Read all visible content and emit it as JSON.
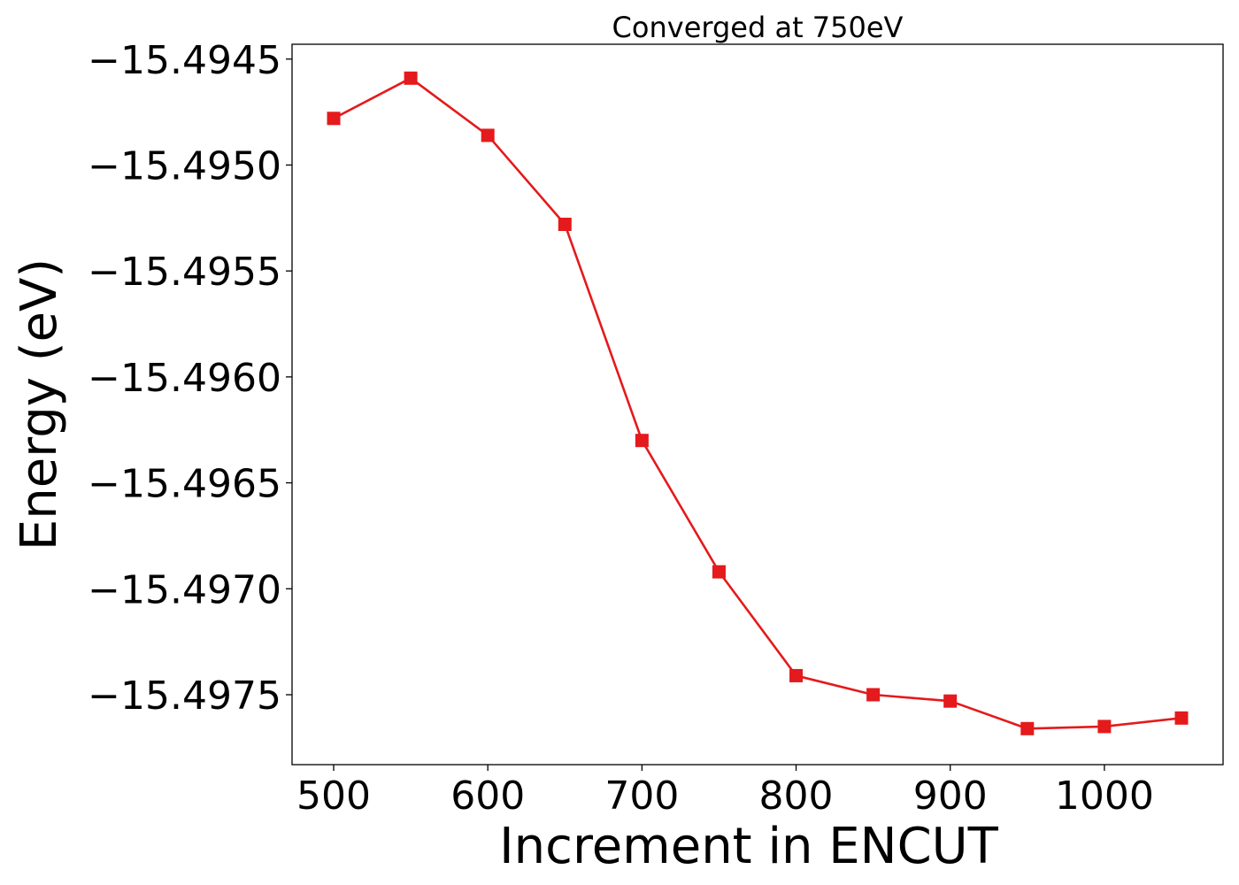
{
  "chart_data": {
    "type": "line",
    "title": "Converged at 750eV",
    "xlabel": "Increment in ENCUT",
    "ylabel": "Energy (eV)",
    "x": [
      500,
      550,
      600,
      650,
      700,
      750,
      800,
      850,
      900,
      950,
      1000,
      1050
    ],
    "series": [
      {
        "values": [
          -15.49478,
          -15.49459,
          -15.49486,
          -15.49528,
          -15.4963,
          -15.49692,
          -15.49741,
          -15.4975,
          -15.49753,
          -15.49766,
          -15.49765,
          -15.49761
        ],
        "color": "#e41a1c",
        "marker": "square"
      }
    ],
    "xlim": [
      473,
      1077
    ],
    "ylim": [
      -15.49783,
      -15.49443
    ],
    "xticks": [
      500,
      600,
      700,
      800,
      900,
      1000
    ],
    "xtick_labels": [
      "500",
      "600",
      "700",
      "800",
      "900",
      "1000"
    ],
    "yticks": [
      -15.4945,
      -15.495,
      -15.4955,
      -15.496,
      -15.4965,
      -15.497,
      -15.4975
    ],
    "ytick_labels": [
      "−15.4945",
      "−15.4950",
      "−15.4955",
      "−15.4960",
      "−15.4965",
      "−15.4970",
      "−15.4975"
    ],
    "grid": false,
    "legend": "none"
  }
}
